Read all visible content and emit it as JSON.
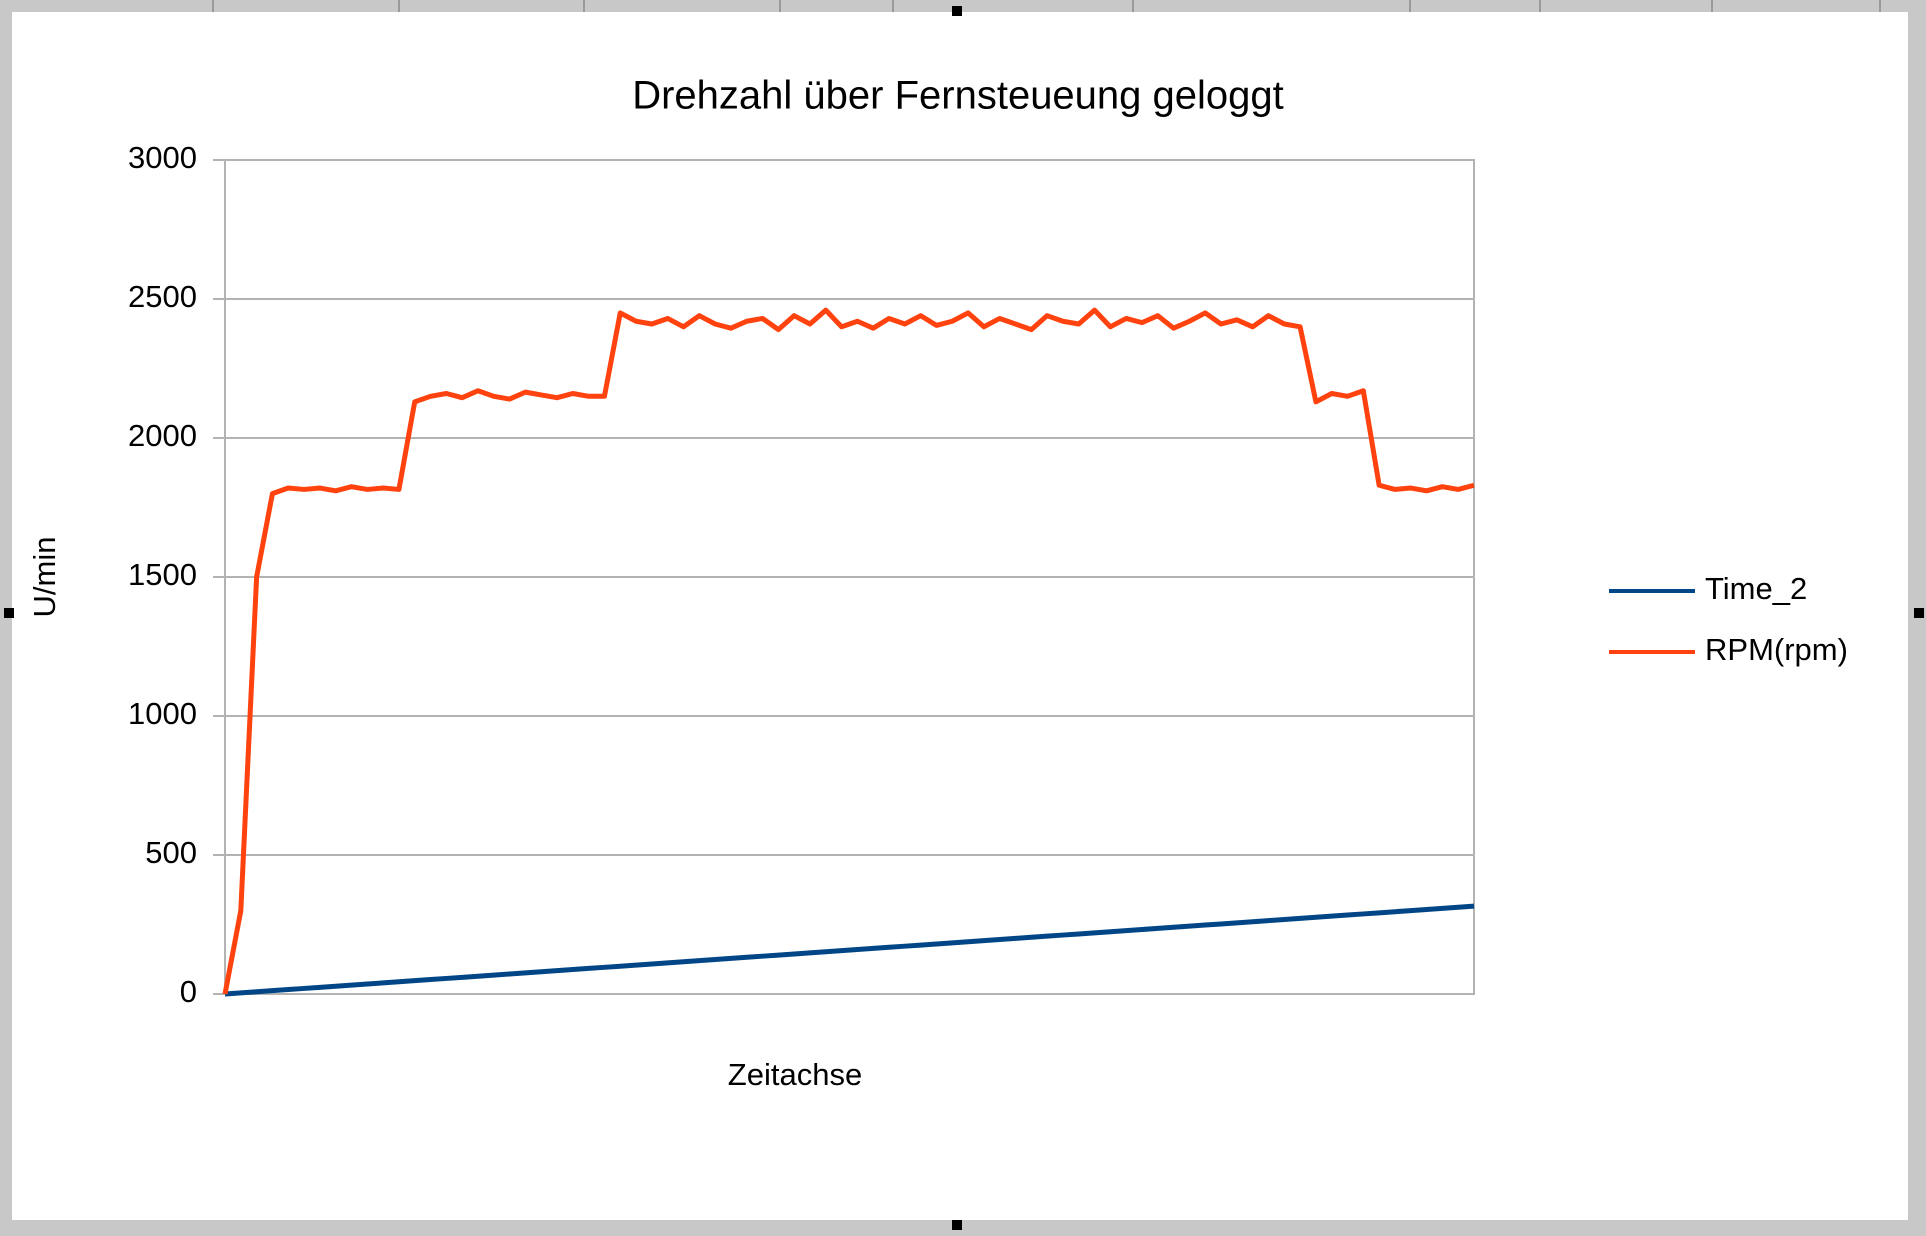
{
  "chart_data": {
    "type": "line",
    "title": "Drehzahl über Fernsteueung geloggt",
    "x_label": "Zeitachse",
    "y_label": "U/min",
    "categories": [
      null,
      null,
      null,
      null,
      null,
      null,
      null,
      null,
      null,
      null,
      null,
      null,
      null,
      null,
      null,
      null,
      null,
      null,
      null,
      null,
      null,
      null,
      null,
      null,
      null,
      null,
      null,
      null,
      null,
      null,
      null,
      null,
      null,
      null,
      null,
      null,
      null,
      null,
      null,
      null,
      null,
      null,
      null,
      null,
      null,
      null,
      null,
      null,
      null,
      null,
      null,
      null,
      null,
      null,
      null,
      null,
      null,
      null,
      null,
      null,
      null,
      null,
      null,
      null,
      null,
      null,
      null,
      null,
      null,
      null,
      null,
      null,
      null,
      null,
      null,
      null,
      null,
      null,
      null,
      null
    ],
    "series": [
      {
        "name": "Time_2",
        "color": "#004586",
        "values": [
          0,
          4,
          8,
          12,
          16,
          20,
          24,
          28,
          32,
          36,
          40,
          44,
          48,
          52,
          56,
          60,
          64,
          68,
          72,
          76,
          80,
          84,
          88,
          92,
          96,
          100,
          104,
          108,
          112,
          116,
          120,
          124,
          128,
          132,
          136,
          140,
          144,
          148,
          152,
          156,
          160,
          164,
          168,
          172,
          176,
          180,
          184,
          188,
          192,
          196,
          200,
          204,
          208,
          212,
          216,
          220,
          224,
          228,
          232,
          236,
          240,
          244,
          248,
          252,
          256,
          260,
          264,
          268,
          272,
          276,
          280,
          284,
          288,
          292,
          296,
          300,
          304,
          308,
          312,
          316
        ]
      },
      {
        "name": "RPM(rpm)",
        "color": "#ff420e",
        "values": [
          0,
          300,
          1500,
          1800,
          1820,
          1815,
          1820,
          1810,
          1825,
          1815,
          1820,
          1815,
          2130,
          2150,
          2160,
          2145,
          2170,
          2150,
          2140,
          2165,
          2155,
          2145,
          2160,
          2150,
          2150,
          2450,
          2420,
          2410,
          2430,
          2400,
          2440,
          2410,
          2395,
          2420,
          2430,
          2390,
          2440,
          2410,
          2460,
          2400,
          2420,
          2395,
          2430,
          2410,
          2440,
          2405,
          2420,
          2450,
          2400,
          2430,
          2410,
          2390,
          2440,
          2420,
          2410,
          2460,
          2400,
          2430,
          2415,
          2440,
          2395,
          2420,
          2450,
          2410,
          2425,
          2400,
          2440,
          2410,
          2400,
          2130,
          2160,
          2150,
          2170,
          1830,
          1815,
          1820,
          1810,
          1825,
          1815,
          1830
        ]
      }
    ],
    "ylim": [
      0,
      3000
    ],
    "yticks": [
      0,
      500,
      1000,
      1500,
      2000,
      2500,
      3000
    ],
    "grid": true,
    "legend": "right"
  }
}
